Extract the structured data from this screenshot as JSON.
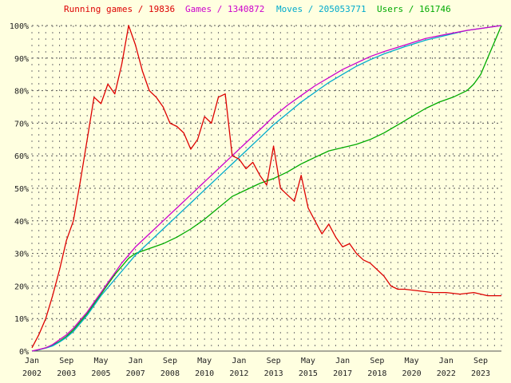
{
  "legend": {
    "running": "Running games / 19836",
    "games": "Games / 1340872",
    "moves": "Moves / 205053771",
    "users": "Users / 161746"
  },
  "chart_data": {
    "type": "line",
    "title": "",
    "xlabel": "",
    "ylabel": "",
    "ylim": [
      0,
      100
    ],
    "xlim": [
      "2002-01",
      "2024-09"
    ],
    "grid": true,
    "legend_position": "top",
    "y_tick_labels": [
      "0%",
      "10%",
      "20%",
      "30%",
      "40%",
      "50%",
      "60%",
      "70%",
      "80%",
      "90%",
      "100%"
    ],
    "x_tick_labels": [
      {
        "month": "Jan",
        "year": "2002",
        "x": "2002-01"
      },
      {
        "month": "Sep",
        "year": "2003",
        "x": "2003-09"
      },
      {
        "month": "May",
        "year": "2005",
        "x": "2005-05"
      },
      {
        "month": "Jan",
        "year": "2007",
        "x": "2007-01"
      },
      {
        "month": "Sep",
        "year": "2008",
        "x": "2008-09"
      },
      {
        "month": "May",
        "year": "2010",
        "x": "2010-05"
      },
      {
        "month": "Jan",
        "year": "2012",
        "x": "2012-01"
      },
      {
        "month": "Sep",
        "year": "2013",
        "x": "2013-09"
      },
      {
        "month": "May",
        "year": "2015",
        "x": "2015-05"
      },
      {
        "month": "Jan",
        "year": "2017",
        "x": "2017-01"
      },
      {
        "month": "Sep",
        "year": "2018",
        "x": "2018-09"
      },
      {
        "month": "May",
        "year": "2020",
        "x": "2020-05"
      },
      {
        "month": "Jan",
        "year": "2022",
        "x": "2022-01"
      },
      {
        "month": "Sep",
        "year": "2023",
        "x": "2023-09"
      }
    ],
    "series": [
      {
        "name": "Running games / 19836",
        "color": "#dd0000",
        "points": [
          [
            "2002-01",
            1
          ],
          [
            "2002-05",
            5
          ],
          [
            "2002-09",
            10
          ],
          [
            "2003-01",
            17
          ],
          [
            "2003-05",
            25
          ],
          [
            "2003-09",
            34
          ],
          [
            "2004-01",
            40
          ],
          [
            "2004-05",
            52
          ],
          [
            "2004-09",
            65
          ],
          [
            "2005-01",
            78
          ],
          [
            "2005-05",
            76
          ],
          [
            "2005-09",
            82
          ],
          [
            "2006-01",
            79
          ],
          [
            "2006-05",
            88
          ],
          [
            "2006-09",
            100
          ],
          [
            "2007-01",
            94
          ],
          [
            "2007-05",
            86
          ],
          [
            "2007-09",
            80
          ],
          [
            "2008-01",
            78
          ],
          [
            "2008-05",
            75
          ],
          [
            "2008-09",
            70
          ],
          [
            "2009-01",
            69
          ],
          [
            "2009-05",
            67
          ],
          [
            "2009-09",
            62
          ],
          [
            "2010-01",
            65
          ],
          [
            "2010-05",
            72
          ],
          [
            "2010-09",
            70
          ],
          [
            "2011-01",
            78
          ],
          [
            "2011-05",
            79
          ],
          [
            "2011-09",
            60
          ],
          [
            "2012-01",
            59
          ],
          [
            "2012-05",
            56
          ],
          [
            "2012-09",
            58
          ],
          [
            "2013-01",
            54
          ],
          [
            "2013-05",
            51
          ],
          [
            "2013-09",
            63
          ],
          [
            "2014-01",
            50
          ],
          [
            "2014-05",
            48
          ],
          [
            "2014-09",
            46
          ],
          [
            "2015-01",
            54
          ],
          [
            "2015-05",
            44
          ],
          [
            "2015-09",
            40
          ],
          [
            "2016-01",
            36
          ],
          [
            "2016-05",
            39
          ],
          [
            "2016-09",
            35
          ],
          [
            "2017-01",
            32
          ],
          [
            "2017-05",
            33
          ],
          [
            "2017-09",
            30
          ],
          [
            "2018-01",
            28
          ],
          [
            "2018-05",
            27
          ],
          [
            "2018-09",
            25
          ],
          [
            "2019-01",
            23
          ],
          [
            "2019-05",
            20
          ],
          [
            "2019-09",
            19
          ],
          [
            "2020-01",
            19
          ],
          [
            "2020-09",
            18.5
          ],
          [
            "2021-05",
            18
          ],
          [
            "2022-01",
            18
          ],
          [
            "2022-09",
            17.5
          ],
          [
            "2023-05",
            18
          ],
          [
            "2024-01",
            17
          ],
          [
            "2024-09",
            17
          ]
        ]
      },
      {
        "name": "Games / 1340872",
        "color": "#cc00cc",
        "points": [
          [
            "2002-01",
            0
          ],
          [
            "2002-05",
            0.5
          ],
          [
            "2002-09",
            1
          ],
          [
            "2003-01",
            2
          ],
          [
            "2003-05",
            3.5
          ],
          [
            "2003-09",
            5
          ],
          [
            "2004-01",
            7
          ],
          [
            "2004-05",
            9.5
          ],
          [
            "2004-09",
            12
          ],
          [
            "2005-01",
            15
          ],
          [
            "2005-05",
            18
          ],
          [
            "2005-09",
            21
          ],
          [
            "2006-01",
            24
          ],
          [
            "2006-05",
            27
          ],
          [
            "2006-09",
            29.5
          ],
          [
            "2007-01",
            32
          ],
          [
            "2007-09",
            36
          ],
          [
            "2008-05",
            40
          ],
          [
            "2009-01",
            44
          ],
          [
            "2009-09",
            48
          ],
          [
            "2010-05",
            52
          ],
          [
            "2011-01",
            56
          ],
          [
            "2011-09",
            60
          ],
          [
            "2012-05",
            64
          ],
          [
            "2013-01",
            68
          ],
          [
            "2013-09",
            72
          ],
          [
            "2014-05",
            75.5
          ],
          [
            "2015-01",
            78.5
          ],
          [
            "2015-09",
            81.5
          ],
          [
            "2016-05",
            84
          ],
          [
            "2017-01",
            86.5
          ],
          [
            "2017-09",
            88.5
          ],
          [
            "2018-05",
            90.5
          ],
          [
            "2019-01",
            92
          ],
          [
            "2020-01",
            94
          ],
          [
            "2021-01",
            96
          ],
          [
            "2022-01",
            97.3
          ],
          [
            "2023-01",
            98.5
          ],
          [
            "2024-09",
            100
          ]
        ]
      },
      {
        "name": "Moves / 205053771",
        "color": "#00aacc",
        "points": [
          [
            "2002-01",
            0
          ],
          [
            "2002-05",
            0.4
          ],
          [
            "2002-09",
            0.9
          ],
          [
            "2003-01",
            1.6
          ],
          [
            "2003-05",
            2.8
          ],
          [
            "2003-09",
            4.2
          ],
          [
            "2004-01",
            6
          ],
          [
            "2004-05",
            8.5
          ],
          [
            "2004-09",
            11
          ],
          [
            "2005-01",
            14
          ],
          [
            "2005-05",
            17
          ],
          [
            "2005-09",
            19.5
          ],
          [
            "2006-01",
            22
          ],
          [
            "2006-05",
            24.5
          ],
          [
            "2006-09",
            27
          ],
          [
            "2007-01",
            29.5
          ],
          [
            "2007-09",
            33.5
          ],
          [
            "2008-05",
            37.5
          ],
          [
            "2009-01",
            41.5
          ],
          [
            "2009-09",
            45.5
          ],
          [
            "2010-05",
            49.5
          ],
          [
            "2011-01",
            53.5
          ],
          [
            "2011-09",
            57.5
          ],
          [
            "2012-05",
            61.5
          ],
          [
            "2013-01",
            65.5
          ],
          [
            "2013-09",
            69.5
          ],
          [
            "2014-05",
            73
          ],
          [
            "2015-01",
            76.5
          ],
          [
            "2015-09",
            79.5
          ],
          [
            "2016-05",
            82.5
          ],
          [
            "2017-01",
            85
          ],
          [
            "2017-09",
            87.5
          ],
          [
            "2018-05",
            89.5
          ],
          [
            "2019-01",
            91.3
          ],
          [
            "2020-01",
            93.5
          ],
          [
            "2021-01",
            95.5
          ],
          [
            "2022-01",
            97
          ],
          [
            "2023-01",
            98.5
          ],
          [
            "2024-09",
            100
          ]
        ]
      },
      {
        "name": "Users / 161746",
        "color": "#00aa00",
        "points": [
          [
            "2002-01",
            0
          ],
          [
            "2002-05",
            0.4
          ],
          [
            "2002-09",
            1
          ],
          [
            "2003-01",
            1.8
          ],
          [
            "2003-05",
            3
          ],
          [
            "2003-09",
            4.5
          ],
          [
            "2004-01",
            6.5
          ],
          [
            "2004-05",
            9
          ],
          [
            "2004-09",
            11.5
          ],
          [
            "2005-01",
            14.5
          ],
          [
            "2005-05",
            17.5
          ],
          [
            "2005-09",
            20.5
          ],
          [
            "2006-01",
            23.5
          ],
          [
            "2006-05",
            26
          ],
          [
            "2006-09",
            28.5
          ],
          [
            "2007-01",
            30
          ],
          [
            "2007-09",
            31.5
          ],
          [
            "2008-05",
            33
          ],
          [
            "2009-01",
            35
          ],
          [
            "2009-09",
            37.5
          ],
          [
            "2010-05",
            40.5
          ],
          [
            "2011-01",
            44
          ],
          [
            "2011-09",
            47.5
          ],
          [
            "2012-05",
            49.5
          ],
          [
            "2013-01",
            51.5
          ],
          [
            "2013-09",
            53
          ],
          [
            "2014-05",
            55
          ],
          [
            "2015-01",
            57.5
          ],
          [
            "2015-09",
            59.5
          ],
          [
            "2016-05",
            61.5
          ],
          [
            "2017-01",
            62.5
          ],
          [
            "2017-09",
            63.5
          ],
          [
            "2018-05",
            65
          ],
          [
            "2019-01",
            67
          ],
          [
            "2019-09",
            69.5
          ],
          [
            "2020-05",
            72
          ],
          [
            "2021-01",
            74.5
          ],
          [
            "2021-09",
            76.5
          ],
          [
            "2022-05",
            78
          ],
          [
            "2023-01",
            80
          ],
          [
            "2023-05",
            82
          ],
          [
            "2023-09",
            85
          ],
          [
            "2024-01",
            90
          ],
          [
            "2024-05",
            95
          ],
          [
            "2024-09",
            100
          ]
        ]
      }
    ]
  }
}
